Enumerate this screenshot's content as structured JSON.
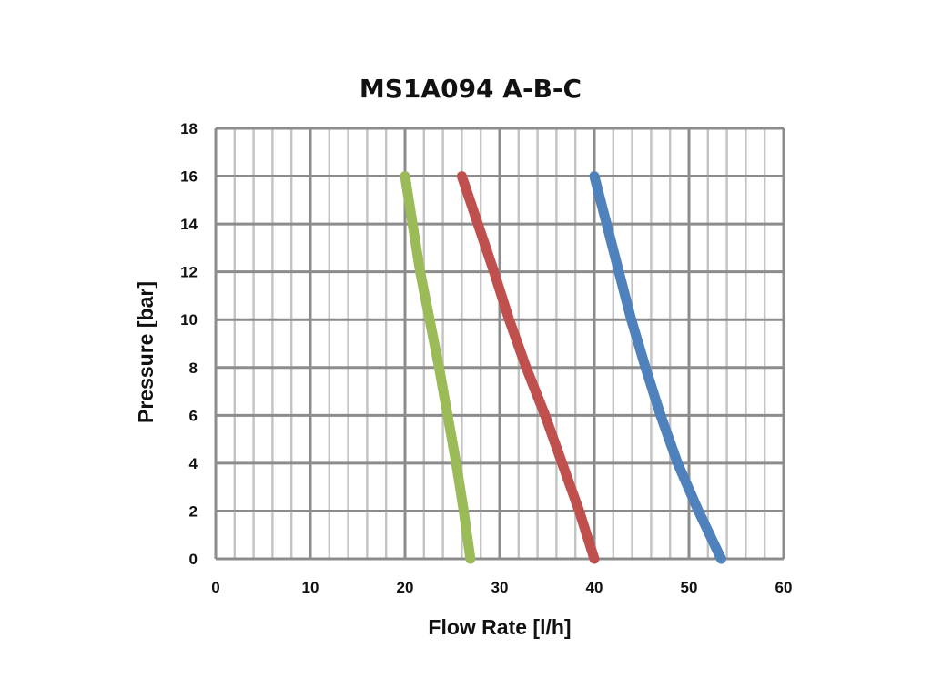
{
  "chart_data": {
    "type": "line",
    "title": "MS1A094 A-B-C",
    "xlabel": "Flow Rate [l/h]",
    "ylabel": "Pressure [bar]",
    "xlim": [
      0,
      60
    ],
    "ylim": [
      0,
      18
    ],
    "xticks": [
      0,
      10,
      20,
      30,
      40,
      50,
      60
    ],
    "yticks": [
      0,
      2,
      4,
      6,
      8,
      10,
      12,
      14,
      16,
      18
    ],
    "x_minor_step": 2,
    "grid": true,
    "legend": "none",
    "series": [
      {
        "color": "#9BBB59",
        "points": [
          [
            20,
            16
          ],
          [
            20.8,
            14
          ],
          [
            21.6,
            12
          ],
          [
            22.6,
            10
          ],
          [
            23.6,
            8
          ],
          [
            24.5,
            6
          ],
          [
            25.4,
            4
          ],
          [
            26.2,
            2
          ],
          [
            26.9,
            0
          ]
        ]
      },
      {
        "color": "#C0504D",
        "points": [
          [
            26,
            16
          ],
          [
            27.7,
            14
          ],
          [
            29.4,
            12
          ],
          [
            31,
            10
          ],
          [
            32.8,
            8
          ],
          [
            34.8,
            6
          ],
          [
            36.6,
            4
          ],
          [
            38.4,
            2
          ],
          [
            40,
            0
          ]
        ]
      },
      {
        "color": "#4F81BD",
        "points": [
          [
            40,
            16
          ],
          [
            41.3,
            14
          ],
          [
            42.6,
            12
          ],
          [
            43.9,
            10
          ],
          [
            45.4,
            8
          ],
          [
            47,
            6
          ],
          [
            48.8,
            4
          ],
          [
            51,
            2
          ],
          [
            53.4,
            0
          ]
        ]
      }
    ]
  }
}
